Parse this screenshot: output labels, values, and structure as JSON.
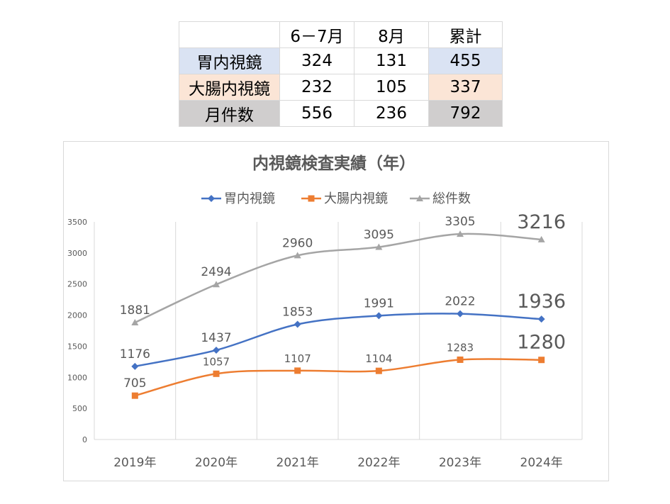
{
  "table": {
    "headers": [
      "",
      "6－7月",
      "8月",
      "累計"
    ],
    "rows": [
      {
        "label": "胃内視鏡",
        "cells": [
          "324",
          "131",
          "455"
        ],
        "label_bg": "#dae3f3",
        "total_bg": "#dae3f3"
      },
      {
        "label": "大腸内視鏡",
        "cells": [
          "232",
          "105",
          "337"
        ],
        "label_bg": "#fbe5d6",
        "total_bg": "#fbe5d6"
      },
      {
        "label": "月件数",
        "cells": [
          "556",
          "236",
          "792"
        ],
        "label_bg": "#d0cece",
        "total_bg": "#d0cece"
      }
    ]
  },
  "chart_data": {
    "type": "line",
    "title": "内視鏡検査実績（年）",
    "categories": [
      "2019年",
      "2020年",
      "2021年",
      "2022年",
      "2023年",
      "2024年"
    ],
    "series": [
      {
        "name": "胃内視鏡",
        "values": [
          1176,
          1437,
          1853,
          1991,
          2022,
          1936
        ],
        "color": "#4472c4",
        "marker": "diamond"
      },
      {
        "name": "大腸内視鏡",
        "values": [
          705,
          1057,
          1107,
          1104,
          1283,
          1280
        ],
        "color": "#ed7d31",
        "marker": "square"
      },
      {
        "name": "総件数",
        "values": [
          1881,
          2494,
          2960,
          3095,
          3305,
          3216
        ],
        "color": "#a5a5a5",
        "marker": "triangle"
      }
    ],
    "y_ticks": [
      "0",
      "500",
      "1000",
      "1500",
      "2000",
      "2500",
      "3000",
      "3500"
    ],
    "ylim": [
      0,
      3500
    ],
    "grid": "vertical",
    "legend_position": "top"
  }
}
